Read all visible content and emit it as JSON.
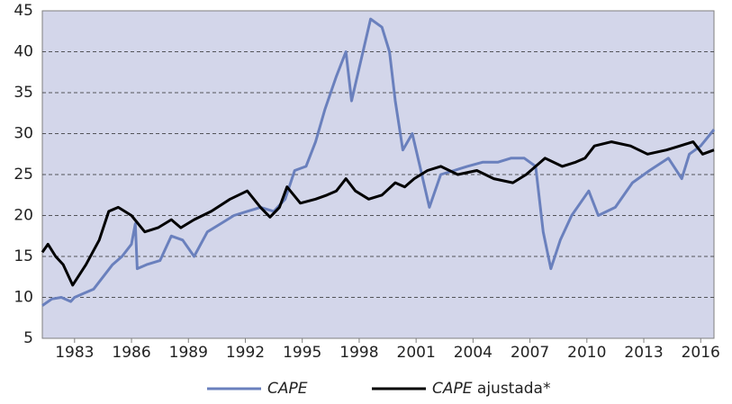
{
  "chart_data": {
    "type": "line",
    "xlim": [
      1981.3,
      2016.7
    ],
    "xticks": [
      1983,
      1986,
      1989,
      1992,
      1995,
      1998,
      2001,
      2004,
      2007,
      2010,
      2013,
      2016
    ],
    "ylim": [
      5,
      45
    ],
    "yticks": [
      5,
      10,
      15,
      20,
      25,
      30,
      35,
      40,
      45
    ],
    "grid": true,
    "legend": "bottom",
    "series": [
      {
        "name": "CAPE",
        "color": "#6a80bd",
        "x": [
          1981.3,
          1981.8,
          1982.3,
          1982.8,
          1983.0,
          1983.5,
          1984.0,
          1984.5,
          1985.0,
          1985.5,
          1986.0,
          1986.2,
          1986.3,
          1986.8,
          1987.5,
          1988.1,
          1988.7,
          1989.3,
          1990.0,
          1990.7,
          1991.4,
          1992.1,
          1992.8,
          1993.5,
          1994.1,
          1994.6,
          1995.2,
          1995.7,
          1996.2,
          1996.8,
          1997.3,
          1997.6,
          1998.0,
          1998.6,
          1999.2,
          1999.6,
          1999.9,
          2000.3,
          2000.8,
          2001.2,
          2001.7,
          2002.3,
          2003.0,
          2003.7,
          2004.5,
          2005.3,
          2006.0,
          2006.7,
          2007.3,
          2007.7,
          2008.1,
          2008.6,
          2009.2,
          2010.1,
          2010.6,
          2011.5,
          2012.4,
          2013.3,
          2014.3,
          2015.0,
          2015.4,
          2016.0,
          2016.7
        ],
        "values": [
          9,
          9.8,
          10,
          9.5,
          10,
          10.5,
          11,
          12.5,
          14,
          15,
          16.5,
          19,
          13.5,
          14,
          14.5,
          17.5,
          17,
          15,
          18,
          19,
          20,
          20.5,
          21,
          20.5,
          22,
          25.5,
          26,
          29,
          33,
          37,
          40,
          34,
          38,
          44,
          43,
          40,
          34,
          28,
          30,
          26,
          21,
          25,
          25.5,
          26,
          26.5,
          26.5,
          27,
          27,
          26,
          18,
          13.5,
          17,
          20,
          23,
          20,
          21,
          24,
          25.5,
          27,
          24.5,
          27.5,
          28.5,
          30.5
        ]
      },
      {
        "name": "CAPE ajustada*",
        "color": "#000000",
        "x": [
          1981.3,
          1981.6,
          1982.0,
          1982.4,
          1982.9,
          1983.6,
          1984.3,
          1984.8,
          1985.3,
          1986.0,
          1986.7,
          1987.4,
          1988.1,
          1988.6,
          1989.3,
          1990.2,
          1991.2,
          1992.1,
          1992.8,
          1993.3,
          1993.8,
          1994.2,
          1994.9,
          1995.7,
          1996.3,
          1996.8,
          1997.3,
          1997.8,
          1998.5,
          1999.2,
          1999.9,
          2000.4,
          2000.9,
          2001.6,
          2002.3,
          2003.2,
          2004.2,
          2005.1,
          2006.1,
          2006.8,
          2007.3,
          2007.8,
          2008.7,
          2009.4,
          2009.9,
          2010.4,
          2011.3,
          2012.3,
          2013.2,
          2014.2,
          2014.9,
          2015.6,
          2016.1,
          2016.7
        ],
        "values": [
          15.5,
          16.5,
          15,
          14,
          11.5,
          14,
          17,
          20.5,
          21,
          20,
          18,
          18.5,
          19.5,
          18.5,
          19.5,
          20.5,
          22,
          23,
          21,
          19.8,
          21,
          23.5,
          21.5,
          22,
          22.5,
          23,
          24.5,
          23,
          22,
          22.5,
          24,
          23.5,
          24.5,
          25.5,
          26,
          25,
          25.5,
          24.5,
          24,
          25,
          26,
          27,
          26,
          26.5,
          27,
          28.5,
          29,
          28.5,
          27.5,
          28,
          28.5,
          29,
          27.5,
          28
        ]
      }
    ]
  }
}
